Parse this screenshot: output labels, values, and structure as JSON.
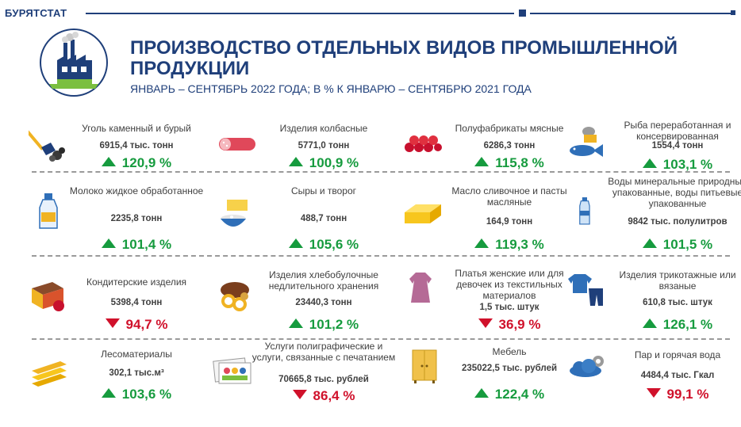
{
  "header": {
    "brand": "БУРЯТСТАТ",
    "title": "ПРОИЗВОДСТВО ОТДЕЛЬНЫХ ВИДОВ ПРОМЫШЛЕННОЙ ПРОДУКЦИИ",
    "subtitle": "ЯНВАРЬ – СЕНТЯБРЬ 2022 ГОДА; В % К ЯНВАРЮ – СЕНТЯБРЮ 2021 ГОДА"
  },
  "colors": {
    "brand": "#1f3f7a",
    "up": "#169b3e",
    "down": "#d0112b"
  },
  "items": [
    {
      "icon": "coal-icon",
      "name": "Уголь каменный и бурый",
      "value": "6915,4 тыс. тонн",
      "percent": "120,9 %",
      "trend": "up"
    },
    {
      "icon": "sausage-icon",
      "name": "Изделия колбасные",
      "value": "5771,0 тонн",
      "percent": "100,9 %",
      "trend": "up"
    },
    {
      "icon": "meat-dumplings-icon",
      "name": "Полуфабрикаты мясные",
      "value": "6286,3 тонн",
      "percent": "115,8 %",
      "trend": "up"
    },
    {
      "icon": "fish-can-icon",
      "name": "Рыба переработанная и консервированная",
      "value": "1554,4 тонн",
      "percent": "103,1 %",
      "trend": "up"
    },
    {
      "icon": "milk-bottle-icon",
      "name": "Молоко жидкое обработанное",
      "value": "2235,8 тонн",
      "percent": "101,4 %",
      "trend": "up"
    },
    {
      "icon": "cheese-icon",
      "name": "Сыры и творог",
      "value": "488,7 тонн",
      "percent": "105,6 %",
      "trend": "up"
    },
    {
      "icon": "butter-icon",
      "name": "Масло сливочное и пасты масляные",
      "value": "164,9 тонн",
      "percent": "119,3 %",
      "trend": "up"
    },
    {
      "icon": "water-bottle-icon",
      "name": "Воды минеральные природные упакованные, воды питьевые упакованные",
      "value": "9842 тыс. полулитров",
      "percent": "101,5 %",
      "trend": "up"
    },
    {
      "icon": "cake-icon",
      "name": "Кондитерские изделия",
      "value": "5398,4 тонн",
      "percent": "94,7 %",
      "trend": "down"
    },
    {
      "icon": "bread-icon",
      "name": "Изделия хлебобулочные недлительного хранения",
      "value": "23440,3 тонн",
      "percent": "101,2 %",
      "trend": "up"
    },
    {
      "icon": "dress-icon",
      "name": "Платья женские или для девочек из текстильных материалов",
      "value": "1,5 тыс. штук",
      "percent": "36,9 %",
      "trend": "down"
    },
    {
      "icon": "knitwear-icon",
      "name": "Изделия трикотажные или вязаные",
      "value": "610,8 тыс. штук",
      "percent": "126,1 %",
      "trend": "up"
    },
    {
      "icon": "lumber-icon",
      "name": "Лесоматериалы",
      "value": "302,1 тыс.м³",
      "percent": "103,6 %",
      "trend": "up"
    },
    {
      "icon": "printing-icon",
      "name": "Услуги полиграфические и услуги, связанные с печатанием",
      "value": "70665,8 тыс. рублей",
      "percent": "86,4 %",
      "trend": "down"
    },
    {
      "icon": "furniture-icon",
      "name": "Мебель",
      "value": "235022,5 тыс. рублей",
      "percent": "122,4 %",
      "trend": "up"
    },
    {
      "icon": "steam-icon",
      "name": "Пар и горячая вода",
      "value": "4484,4 тыс. Гкал",
      "percent": "99,1 %",
      "trend": "down"
    }
  ]
}
